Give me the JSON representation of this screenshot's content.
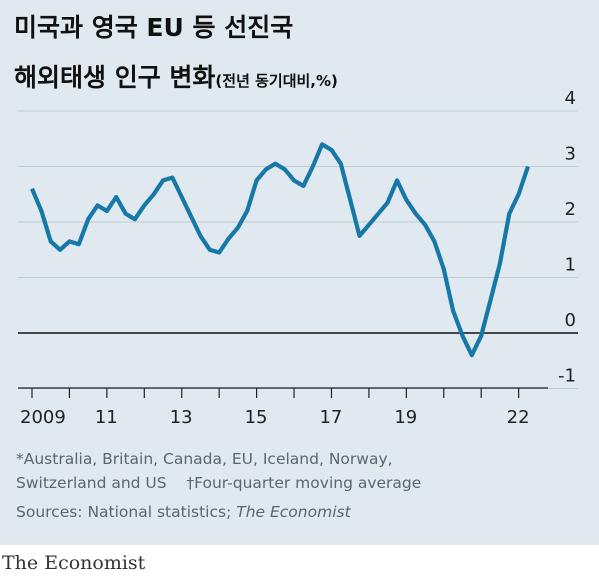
{
  "header": {
    "title_line1": "미국과 영국 EU 등 선진국",
    "title_line2": "해외태생 인구 변화",
    "unit_note": "(전년 동기대비,%)"
  },
  "footer": {
    "note_line1": "*Australia, Britain, Canada, EU, Iceland, Norway,",
    "note_line2a": "Switzerland and US",
    "note_line2b": "†Four-quarter moving average",
    "source_prefix": "Sources: National statistics;",
    "source_italic": "The Economist",
    "brand": "The Economist"
  },
  "colors": {
    "background": "#dfe9ef",
    "line": "#1778a8",
    "zero_line": "#111111",
    "gridline": "#bfccd6"
  },
  "chart_data": {
    "type": "line",
    "title": "해외태생 인구 변화",
    "xlabel": "",
    "ylabel": "(전년 동기대비,%)",
    "ylim": [
      -1,
      4
    ],
    "xlim": [
      2009,
      2023
    ],
    "x_tick_labels": [
      {
        "x": 2009,
        "label": "2009"
      },
      {
        "x": 2011,
        "label": "11"
      },
      {
        "x": 2013,
        "label": "13"
      },
      {
        "x": 2015,
        "label": "15"
      },
      {
        "x": 2017,
        "label": "17"
      },
      {
        "x": 2019,
        "label": "19"
      },
      {
        "x": 2022,
        "label": "22"
      }
    ],
    "y_ticks": [
      4,
      3,
      2,
      1,
      0,
      -1
    ],
    "grid": true,
    "series": [
      {
        "x": [
          2009.0,
          2009.25,
          2009.5,
          2009.75,
          2010.0,
          2010.25,
          2010.5,
          2010.75,
          2011.0,
          2011.25,
          2011.5,
          2011.75,
          2012.0,
          2012.25,
          2012.5,
          2012.75,
          2013.0,
          2013.25,
          2013.5,
          2013.75,
          2014.0,
          2014.25,
          2014.5,
          2014.75,
          2015.0,
          2015.25,
          2015.5,
          2015.75,
          2016.0,
          2016.25,
          2016.5,
          2016.75,
          2017.0,
          2017.25,
          2017.5,
          2017.75,
          2018.0,
          2018.25,
          2018.5,
          2018.75,
          2019.0,
          2019.25,
          2019.5,
          2019.75,
          2020.0,
          2020.25,
          2020.5,
          2020.75,
          2021.0,
          2021.25,
          2021.5,
          2021.75,
          2022.0,
          2022.25
        ],
        "values": [
          2.6,
          2.2,
          1.65,
          1.5,
          1.65,
          1.6,
          2.05,
          2.3,
          2.2,
          2.45,
          2.15,
          2.05,
          2.3,
          2.5,
          2.75,
          2.8,
          2.45,
          2.1,
          1.75,
          1.5,
          1.45,
          1.7,
          1.9,
          2.2,
          2.75,
          2.95,
          3.05,
          2.95,
          2.75,
          2.65,
          3.0,
          3.4,
          3.3,
          3.05,
          2.4,
          1.75,
          1.95,
          2.15,
          2.35,
          2.75,
          2.4,
          2.15,
          1.95,
          1.65,
          1.15,
          0.4,
          -0.05,
          -0.4,
          -0.05,
          0.6,
          1.25,
          2.15,
          2.5,
          3.0
        ]
      }
    ]
  }
}
